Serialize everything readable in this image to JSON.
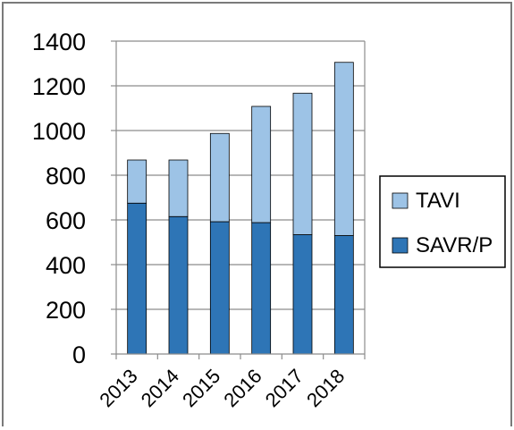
{
  "chart_data": {
    "type": "bar",
    "stacked": true,
    "categories": [
      "2013",
      "2014",
      "2015",
      "2016",
      "2017",
      "2018"
    ],
    "series": [
      {
        "name": "SAVR/P",
        "values": [
          675,
          615,
          592,
          588,
          534,
          530
        ],
        "color": "#2e75b6"
      },
      {
        "name": "TAVI",
        "values": [
          193,
          253,
          395,
          520,
          633,
          775
        ],
        "color": "#9dc3e6"
      }
    ],
    "title": "",
    "xlabel": "",
    "ylabel": "",
    "ylim": [
      0,
      1400
    ],
    "yticks": [
      0,
      200,
      400,
      600,
      800,
      1000,
      1200,
      1400
    ],
    "grid": true,
    "legend_position": "right",
    "legend_order": [
      "TAVI",
      "SAVR/P"
    ]
  }
}
